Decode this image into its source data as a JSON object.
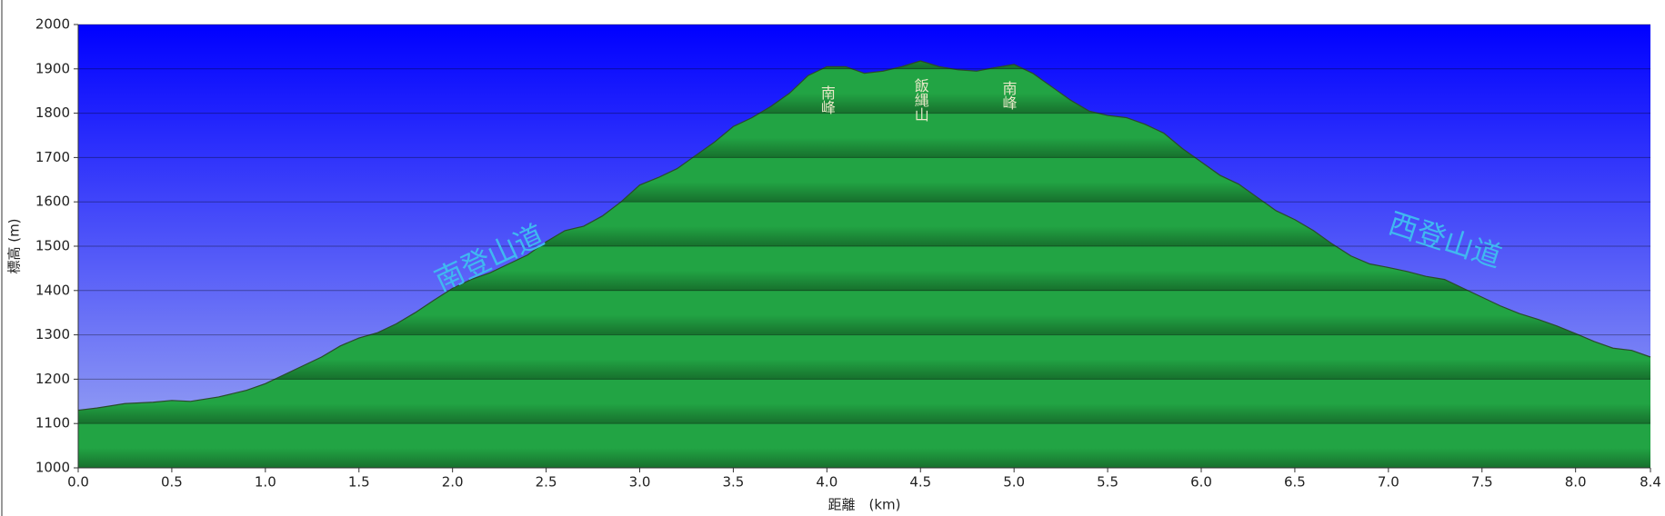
{
  "chart_data": {
    "type": "area",
    "x_label": "距離　(km)",
    "y_label": "標高 (m)",
    "x": [
      0,
      0.1,
      0.25,
      0.4,
      0.5,
      0.6,
      0.75,
      0.9,
      1.0,
      1.1,
      1.2,
      1.3,
      1.4,
      1.5,
      1.6,
      1.7,
      1.8,
      1.9,
      2.0,
      2.1,
      2.2,
      2.3,
      2.4,
      2.5,
      2.6,
      2.7,
      2.8,
      2.9,
      3.0,
      3.1,
      3.2,
      3.3,
      3.4,
      3.5,
      3.6,
      3.7,
      3.8,
      3.9,
      4.0,
      4.1,
      4.2,
      4.3,
      4.4,
      4.5,
      4.6,
      4.7,
      4.8,
      4.9,
      5.0,
      5.1,
      5.2,
      5.3,
      5.4,
      5.5,
      5.6,
      5.7,
      5.8,
      5.9,
      6.0,
      6.1,
      6.2,
      6.3,
      6.4,
      6.5,
      6.6,
      6.7,
      6.8,
      6.9,
      7.0,
      7.1,
      7.2,
      7.3,
      7.4,
      7.5,
      7.6,
      7.7,
      7.8,
      7.9,
      8.0,
      8.1,
      8.2,
      8.3,
      8.4
    ],
    "series": [
      {
        "color": "#22a444",
        "values": [
          1130,
          1135,
          1145,
          1148,
          1152,
          1150,
          1160,
          1175,
          1190,
          1210,
          1230,
          1250,
          1275,
          1293,
          1305,
          1325,
          1350,
          1378,
          1405,
          1425,
          1440,
          1460,
          1480,
          1510,
          1535,
          1545,
          1568,
          1600,
          1638,
          1655,
          1675,
          1705,
          1735,
          1770,
          1790,
          1815,
          1845,
          1885,
          1905,
          1905,
          1890,
          1895,
          1905,
          1918,
          1905,
          1898,
          1895,
          1903,
          1910,
          1890,
          1860,
          1830,
          1805,
          1795,
          1790,
          1775,
          1755,
          1720,
          1690,
          1660,
          1640,
          1610,
          1580,
          1560,
          1535,
          1505,
          1478,
          1460,
          1452,
          1443,
          1432,
          1425,
          1405,
          1385,
          1365,
          1348,
          1335,
          1320,
          1303,
          1285,
          1270,
          1265,
          1250
        ]
      }
    ],
    "xlim": [
      0,
      8.4
    ],
    "ylim": [
      1000,
      2000
    ],
    "xticks": [
      {
        "value": 0,
        "label": "0.0"
      },
      0.5,
      {
        "value": 1,
        "label": "1.0"
      },
      1.5,
      {
        "value": 2,
        "label": "2.0"
      },
      2.5,
      {
        "value": 3,
        "label": "3.0"
      },
      3.5,
      {
        "value": 4,
        "label": "4.0"
      },
      4.5,
      {
        "value": 5,
        "label": "5.0"
      },
      5.5,
      {
        "value": 6,
        "label": "6.0"
      },
      6.5,
      {
        "value": 7,
        "label": "7.0"
      },
      7.5,
      {
        "value": 8,
        "label": "8.0"
      },
      8.4
    ],
    "yticks": [
      1000,
      1100,
      1200,
      1300,
      1400,
      1500,
      1600,
      1700,
      1800,
      1900,
      2000
    ],
    "grid": true,
    "annotations": [
      "南登山道",
      "西登山道",
      "南峰",
      "飯縄山",
      "南峰"
    ]
  }
}
